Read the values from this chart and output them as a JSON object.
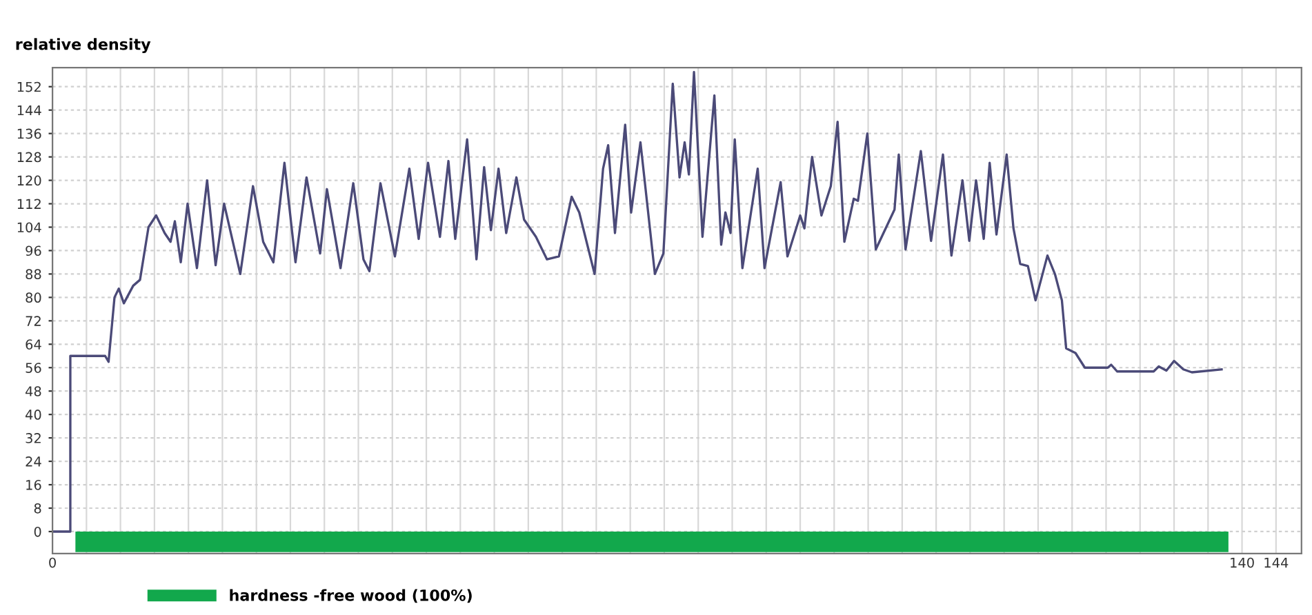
{
  "chart_data": {
    "type": "line",
    "ylabel": "relative density",
    "series": [
      {
        "color": "#4b4a78",
        "x": [
          0,
          2.1,
          2.1,
          6.2,
          6.6,
          7.3,
          7.8,
          8.4,
          9.5,
          10.3,
          11.3,
          12.2,
          13.2,
          13.9,
          14.4,
          15.1,
          15.9,
          17.0,
          18.2,
          19.2,
          20.2,
          22.1,
          23.6,
          24.8,
          26.0,
          27.3,
          28.6,
          29.9,
          31.5,
          32.3,
          33.9,
          35.4,
          36.6,
          37.3,
          38.6,
          40.3,
          42.0,
          43.1,
          44.2,
          45.6,
          46.6,
          47.4,
          48.8,
          49.9,
          50.8,
          51.6,
          52.5,
          53.4,
          54.6,
          55.5,
          56.9,
          58.2,
          59.6,
          61.1,
          62.0,
          63.8,
          64.8,
          65.4,
          66.2,
          67.4,
          68.1,
          69.2,
          70.9,
          71.9,
          73.0,
          73.8,
          74.4,
          74.9,
          75.5,
          76.5,
          77.9,
          78.7,
          79.2,
          79.8,
          80.3,
          81.2,
          83.0,
          83.8,
          85.7,
          86.5,
          88.0,
          88.5,
          89.4,
          90.5,
          91.6,
          92.4,
          93.2,
          94.3,
          94.8,
          95.9,
          96.9,
          99.1,
          99.6,
          100.4,
          102.2,
          103.4,
          104.8,
          105.8,
          107.1,
          107.9,
          108.7,
          109.6,
          110.3,
          111.1,
          112.3,
          113.1,
          113.9,
          114.8,
          115.7,
          117.1,
          118.0,
          118.8,
          119.3,
          120.4,
          121.5,
          124.2,
          124.6,
          125.3,
          129.6,
          130.2,
          131.1,
          132.0,
          133.1,
          134.1,
          137.6
        ],
        "name": null,
        "values": [
          0,
          0,
          60,
          60,
          58,
          80,
          83,
          78,
          84,
          86,
          104,
          108,
          102,
          99,
          106,
          92,
          112,
          90,
          120,
          91,
          112,
          88,
          118,
          99,
          92,
          126,
          92,
          121,
          95,
          117,
          90,
          119,
          93,
          89,
          119,
          94,
          124,
          100,
          126,
          100.7,
          126.6,
          100,
          134,
          93,
          124.5,
          103,
          124,
          102,
          121,
          106.6,
          100.7,
          93,
          94,
          114.4,
          109,
          88,
          124,
          132,
          102,
          139,
          109,
          133,
          88,
          95,
          153,
          121,
          133,
          122,
          157,
          100.7,
          149,
          98,
          109,
          102,
          134,
          90,
          124,
          90,
          119.4,
          94,
          108,
          103.6,
          128,
          108,
          118,
          140,
          99,
          113.7,
          113,
          136,
          96.4,
          110,
          128.8,
          96.4,
          130,
          99.3,
          128.8,
          94.3,
          120,
          99.3,
          120,
          100,
          126,
          101.5,
          128.8,
          103.6,
          91.4,
          90.7,
          79,
          94.3,
          87.8,
          79,
          62.6,
          61,
          56,
          56,
          57,
          54.7,
          54.7,
          56.4,
          55,
          58.3,
          55.4,
          54.4,
          55.4
        ]
      },
      {
        "type": "area",
        "name": "hardness -free wood (100%)",
        "color": "#12a84c",
        "x": [
          2.7,
          138.4
        ],
        "values": [
          -7,
          -7
        ]
      }
    ],
    "xlim": [
      0,
      147
    ],
    "ylim": [
      -7.5,
      158.5
    ],
    "xticks": [
      0,
      {
        "value": 4,
        "label": null
      },
      {
        "value": 8,
        "label": null
      },
      {
        "value": 12,
        "label": null
      },
      {
        "value": 16,
        "label": null
      },
      {
        "value": 20,
        "label": null
      },
      {
        "value": 24,
        "label": null
      },
      {
        "value": 28,
        "label": null
      },
      {
        "value": 32,
        "label": null
      },
      {
        "value": 36,
        "label": null
      },
      {
        "value": 40,
        "label": null
      },
      {
        "value": 44,
        "label": null
      },
      {
        "value": 48,
        "label": null
      },
      {
        "value": 52,
        "label": null
      },
      {
        "value": 56,
        "label": null
      },
      {
        "value": 60,
        "label": null
      },
      {
        "value": 64,
        "label": null
      },
      {
        "value": 68,
        "label": null
      },
      {
        "value": 72,
        "label": null
      },
      {
        "value": 76,
        "label": null
      },
      {
        "value": 80,
        "label": null
      },
      {
        "value": 84,
        "label": null
      },
      {
        "value": 88,
        "label": null
      },
      {
        "value": 92,
        "label": null
      },
      {
        "value": 96,
        "label": null
      },
      {
        "value": 100,
        "label": null
      },
      {
        "value": 104,
        "label": null
      },
      {
        "value": 108,
        "label": null
      },
      {
        "value": 112,
        "label": null
      },
      {
        "value": 116,
        "label": null
      },
      {
        "value": 120,
        "label": null
      },
      {
        "value": 124,
        "label": null
      },
      {
        "value": 128,
        "label": null
      },
      {
        "value": 132,
        "label": null
      },
      {
        "value": 136,
        "label": null
      },
      140,
      144
    ],
    "yticks": [
      0,
      8,
      16,
      24,
      32,
      40,
      48,
      56,
      64,
      72,
      80,
      88,
      96,
      104,
      112,
      120,
      128,
      136,
      144,
      152
    ],
    "grid": true,
    "legend": "bottom left"
  }
}
